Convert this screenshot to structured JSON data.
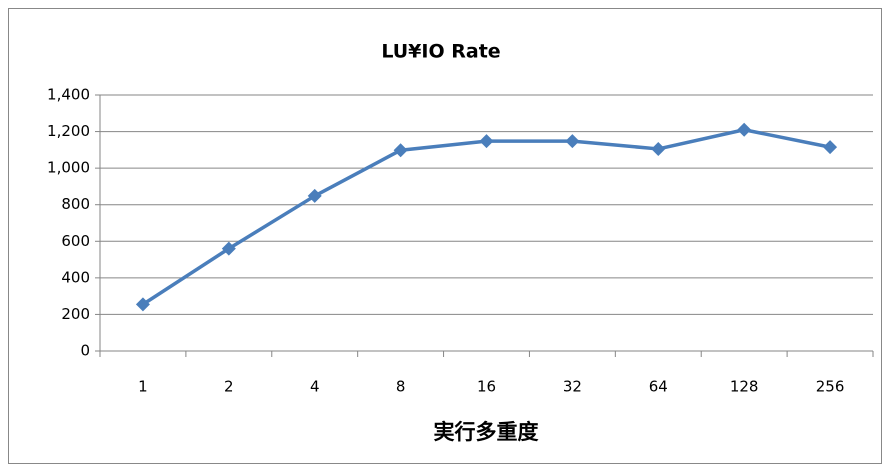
{
  "chart_data": {
    "type": "line",
    "title": "LU¥IO Rate",
    "x_label": "実行多重度",
    "categories": [
      "1",
      "2",
      "4",
      "8",
      "16",
      "32",
      "64",
      "128",
      "256"
    ],
    "values": [
      255,
      560,
      848,
      1098,
      1148,
      1148,
      1105,
      1210,
      1115
    ],
    "color": "#4a7ebb",
    "ylim": [
      0,
      1400
    ],
    "yticks": [
      0,
      200,
      400,
      600,
      800,
      {
        "value": 1000,
        "label": "1,000"
      },
      {
        "value": 1200,
        "label": "1,200"
      },
      {
        "value": 1400,
        "label": "1,400"
      }
    ],
    "grid": true
  }
}
